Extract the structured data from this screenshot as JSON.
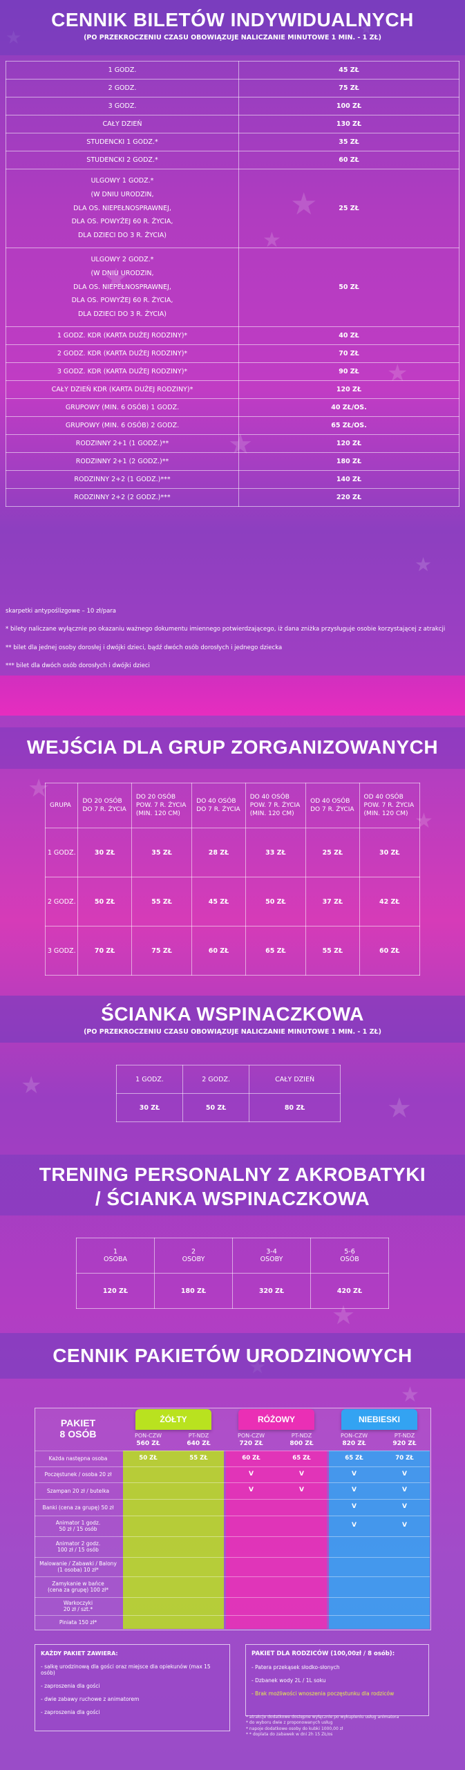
{
  "sec1": {
    "title": "CENNIK BILETÓW INDYWIDUALNYCH",
    "subtitle": "(PO PRZEKROCZENIU CZASU OBOWIĄZUJE NALICZANIE MINUTOWE 1 MIN. - 1 ZŁ)",
    "rows": [
      {
        "label": "1 GODZ.",
        "price": "45 ZŁ"
      },
      {
        "label": "2 GODZ.",
        "price": "75 ZŁ"
      },
      {
        "label": "3 GODZ.",
        "price": "100 ZŁ"
      },
      {
        "label": "CAŁY DZIEŃ",
        "price": "130 ZŁ"
      },
      {
        "label": "STUDENCKI 1 GODZ.*",
        "price": "35 ZŁ"
      },
      {
        "label": "STUDENCKI 2 GODZ.*",
        "price": "60 ZŁ"
      },
      {
        "label": "ULGOWY 1 GODZ.*\n(W DNIU URODZIN,\nDLA OS. NIEPEŁNOSPRAWNEJ,\nDLA OS. POWYŻEJ 60 R. ŻYCIA,\nDLA DZIECI DO 3 R. ŻYCIA)",
        "price": "25 ZŁ"
      },
      {
        "label": "ULGOWY 2 GODZ.*\n(W DNIU URODZIN,\nDLA OS. NIEPEŁNOSPRAWNEJ,\nDLA OS. POWYŻEJ 60 R. ŻYCIA,\nDLA DZIECI DO 3 R. ŻYCIA)",
        "price": "50 ZŁ"
      },
      {
        "label": "1 GODZ. KDR (KARTA DUŻEJ RODZINY)*",
        "price": "40 ZŁ"
      },
      {
        "label": "2 GODZ. KDR (KARTA DUŻEJ RODZINY)*",
        "price": "70 ZŁ"
      },
      {
        "label": "3 GODZ. KDR (KARTA DUŻEJ RODZINY)*",
        "price": "90 ZŁ"
      },
      {
        "label": "CAŁY DZIEŃ KDR (KARTA DUŻEJ RODZINY)*",
        "price": "120 ZŁ"
      },
      {
        "label": "GRUPOWY (MIN. 6 OSÓB) 1 GODZ.",
        "price": "40 ZŁ/OS."
      },
      {
        "label": "GRUPOWY (MIN. 6 OSÓB) 2 GODZ.",
        "price": "65 ZŁ/OS."
      },
      {
        "label": "RODZINNY 2+1 (1 GODZ.)**",
        "price": "120 ZŁ"
      },
      {
        "label": "RODZINNY 2+1 (2 GODZ.)**",
        "price": "180 ZŁ"
      },
      {
        "label": "RODZINNY 2+2 (1 GODZ.)***",
        "price": "140 ZŁ"
      },
      {
        "label": "RODZINNY 2+2 (2 GODZ.)***",
        "price": "220 ZŁ"
      }
    ],
    "notes": [
      "skarpetki antypoślizgowe – 10 zł/para",
      "* bilety naliczane wyłącznie po okazaniu ważnego dokumentu imiennego potwierdzającego, iż dana zniżka przysługuje osobie korzystającej z atrakcji",
      "** bilet dla jednej osoby dorosłej i dwójki dzieci, bądź dwóch osób dorosłych i jednego dziecka",
      "*** bilet dla dwóch osób dorosłych i dwójki dzieci"
    ]
  },
  "sec2": {
    "title": "WEJŚCIA DLA GRUP ZORGANIZOWANYCH",
    "headers": [
      "GRUPA",
      "DO 20 OSÓB\nDO 7 R. ŻYCIA",
      "DO 20 OSÓB\nPOW. 7 R. ŻYCIA\n(MIN. 120 CM)",
      "DO 40 OSÓB\nDO 7 R. ŻYCIA",
      "DO 40 OSÓB\nPOW. 7 R. ŻYCIA\n(MIN. 120 CM)",
      "OD 40 OSÓB\nDO 7 R. ŻYCIA",
      "OD 40 OSÓB\nPOW. 7 R. ŻYCIA\n(MIN. 120 CM)"
    ],
    "rows": [
      [
        "1 GODZ.",
        "30 ZŁ",
        "35 ZŁ",
        "28 ZŁ",
        "33 ZŁ",
        "25 ZŁ",
        "30 ZŁ"
      ],
      [
        "2 GODZ.",
        "50 ZŁ",
        "55 ZŁ",
        "45 ZŁ",
        "50 ZŁ",
        "37 ZŁ",
        "42 ZŁ"
      ],
      [
        "3 GODZ.",
        "70 ZŁ",
        "75 ZŁ",
        "60 ZŁ",
        "65 ZŁ",
        "55 ZŁ",
        "60 ZŁ"
      ]
    ]
  },
  "sec3": {
    "title": "ŚCIANKA WSPINACZKOWA",
    "subtitle": "(PO PRZEKROCZENIU CZASU OBOWIĄZUJE NALICZANIE MINUTOWE 1 MIN. - 1 ZŁ)",
    "headers": [
      "1 GODZ.",
      "2 GODZ.",
      "CAŁY DZIEŃ"
    ],
    "values": [
      "30 ZŁ",
      "50 ZŁ",
      "80 ZŁ"
    ]
  },
  "sec4": {
    "title_line1": "TRENING PERSONALNY Z AKROBATYKI",
    "title_line2": "/ ŚCIANKA WSPINACZKOWA",
    "headers": [
      "1\nOSOBA",
      "2\nOSOBY",
      "3-4\nOSOBY",
      "5-6\nOSÓB"
    ],
    "values": [
      "120 ZŁ",
      "180 ZŁ",
      "320 ZŁ",
      "420 ZŁ"
    ]
  },
  "sec5": {
    "title": "CENNIK PAKIETÓW URODZINOWYCH",
    "package_label": "PAKIET\n8 OSÓB",
    "packages": [
      {
        "name": "ŻÓŁTY",
        "color": "#b9e21f",
        "days": [
          "PON-CZW",
          "PT-NDZ"
        ],
        "prices": [
          "560 ZŁ",
          "640 ZŁ"
        ]
      },
      {
        "name": "RÓŻOWY",
        "color": "#ea2fb5",
        "days": [
          "PON-CZW",
          "PT-NDZ"
        ],
        "prices": [
          "720 ZŁ",
          "800 ZŁ"
        ]
      },
      {
        "name": "NIEBIESKI",
        "color": "#33a3f2",
        "days": [
          "PON-CZW",
          "PT-NDZ"
        ],
        "prices": [
          "820 ZŁ",
          "920 ZŁ"
        ]
      }
    ],
    "row_labels": [
      "Każda następna osoba",
      "Poczęstunek / osoba 20 zł",
      "Szampan 20 zł / butelka",
      "Banki (cena za grupę) 50 zł",
      "Animator 1 godz.\n50 zł / 15 osób",
      "Animator 2 godz.\n100 zł / 15 osób",
      "Malowanie / Zabawki / Balony\n(1 osoba) 10 zł*",
      "Zamykanie w bańce\n(cena za grupę) 100 zł*",
      "Warkoczyki\n20 zł / szt.*",
      "Piniata 150 zł*"
    ],
    "next_person": [
      "50 ZŁ",
      "55 ZŁ",
      "60 ZŁ",
      "65 ZŁ",
      "65 ZŁ",
      "70 ZŁ"
    ],
    "check": "V",
    "included_box_title": "KAŻDY PAKIET ZAWIERA:",
    "included_items": [
      "- salkę urodzinową dla gości oraz miejsce dla opiekunów (max 15 osób)",
      "- zaproszenia dla gości",
      "- dwie zabawy ruchowe z animatorem",
      "- zaproszenia dla gości"
    ],
    "parents_box_title": "PAKIET DLA RODZICÓW (100,00zł / 8 osób):",
    "parents_items": [
      "- Patera przekąsek słodko-słonych",
      "- Dzbanek wody 2L / 1L soku",
      "- Brak możliwości wnoszenia poczęstunku dla rodziców"
    ],
    "footnotes": [
      "* atrakcje dodatkowe dostępne wyłącznie po wykupieniu usług animatora",
      "* do wyboru dwie z proponowanych usług",
      "* napoje dodatkowe osoby do kubki 1000,00 zł",
      "* * doplata do zabawek w dni 2h 15 ZŁ/os"
    ]
  }
}
